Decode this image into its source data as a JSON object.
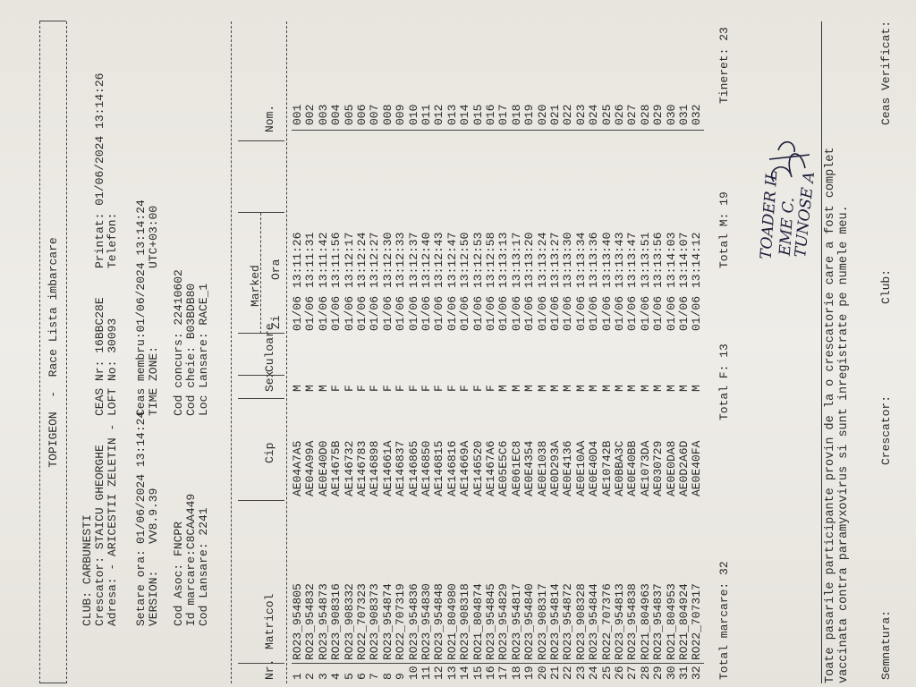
{
  "header": {
    "title": "TOPIGEON  -  Race Lista imbarcare",
    "club": "CLUB: CARBUNESTI",
    "crescator": "Crescator: STAICU GHEORGHE",
    "adresa": "Adresa: - ARICESTII ZELETIN -",
    "ceas_nr": "CEAS Nr: 16BBC28E",
    "loft_no": "LOFT No: 30093",
    "printat": "Printat: 01/06/2024 13:14:26",
    "telefon": "Telefon:",
    "setare_ora": {
      "label": "Setare ora:",
      "value": "01/06/2024 13:14:24"
    },
    "version": {
      "label": "VERSION:",
      "value": "VV8.9.39"
    },
    "ceas_membru": "Ceas membru:01/06/2024 13:14:24",
    "time_zone": {
      "label": "TIME ZONE:",
      "value": "UTC+03:00"
    },
    "cod_asoc": "Cod Asoc: FNCPR",
    "id_marcare": "Id marcare:C8CAA449",
    "cod_lansare": "Cod Lansare: 2241",
    "cod_concurs": "Cod concurs: 22410602",
    "cod_cheie": "Cod cheie: B03BDB80",
    "loc_lansare": "Loc Lansare: RACE_1"
  },
  "table": {
    "columns": [
      "Nr.",
      "Matricol",
      "Cip",
      "Sex",
      "Culoare",
      "Zi",
      "Ora",
      "Nom."
    ],
    "group": "Marked",
    "rows": [
      [
        1,
        "RO23_954805",
        "AE04A7A5",
        "M",
        "01/06",
        "13:11:26",
        "001"
      ],
      [
        2,
        "RO23_954832",
        "AE04A99A",
        "M",
        "01/06",
        "13:11:31",
        "002"
      ],
      [
        3,
        "RO23_954873",
        "AE0E40D0",
        "M",
        "01/06",
        "13:11:42",
        "003"
      ],
      [
        4,
        "RO23_908316",
        "AE14675B",
        "F",
        "01/06",
        "13:11:56",
        "004"
      ],
      [
        5,
        "RO23_908332",
        "AE146732",
        "F",
        "01/06",
        "13:12:17",
        "005"
      ],
      [
        6,
        "RO22_707323",
        "AE146783",
        "F",
        "01/06",
        "13:12:24",
        "006"
      ],
      [
        7,
        "RO23_908373",
        "AE146898",
        "F",
        "01/06",
        "13:12:27",
        "007"
      ],
      [
        8,
        "RO23_954874",
        "AE14661A",
        "F",
        "01/06",
        "13:12:30",
        "008"
      ],
      [
        9,
        "RO22_707319",
        "AE146837",
        "F",
        "01/06",
        "13:12:33",
        "009"
      ],
      [
        10,
        "RO23_954836",
        "AE146865",
        "F",
        "01/06",
        "13:12:37",
        "010"
      ],
      [
        11,
        "RO23_954830",
        "AE146850",
        "F",
        "01/06",
        "13:12:40",
        "011"
      ],
      [
        12,
        "RO23_954848",
        "AE146815",
        "F",
        "01/06",
        "13:12:43",
        "012"
      ],
      [
        13,
        "RO21_804980",
        "AE146816",
        "F",
        "01/06",
        "13:12:47",
        "013"
      ],
      [
        14,
        "RO23_908318",
        "AE14669A",
        "F",
        "01/06",
        "13:12:50",
        "014"
      ],
      [
        15,
        "RO21_804874",
        "AE146520",
        "F",
        "01/06",
        "13:12:53",
        "015"
      ],
      [
        16,
        "RO23_954845",
        "AE1467A6",
        "F",
        "01/06",
        "13:12:58",
        "016"
      ],
      [
        17,
        "RO23_954829",
        "AE05E5C6",
        "M",
        "01/06",
        "13:13:13",
        "017"
      ],
      [
        18,
        "RO23_954817",
        "AE061EC8",
        "M",
        "01/06",
        "13:13:17",
        "018"
      ],
      [
        19,
        "RO23_954840",
        "AE0E4354",
        "M",
        "01/06",
        "13:13:20",
        "019"
      ],
      [
        20,
        "RO23_908317",
        "AE0E1038",
        "M",
        "01/06",
        "13:13:24",
        "020"
      ],
      [
        21,
        "RO23_954814",
        "AE0D293A",
        "M",
        "01/06",
        "13:13:27",
        "021"
      ],
      [
        22,
        "RO23_954872",
        "AE0E4136",
        "M",
        "01/06",
        "13:13:30",
        "022"
      ],
      [
        23,
        "RO23_908328",
        "AE0E10AA",
        "M",
        "01/06",
        "13:13:34",
        "023"
      ],
      [
        24,
        "RO23_954844",
        "AE0E40D4",
        "M",
        "01/06",
        "13:13:36",
        "024"
      ],
      [
        25,
        "RO22_707376",
        "AE10742B",
        "M",
        "01/06",
        "13:13:40",
        "025"
      ],
      [
        26,
        "RO23_954813",
        "AE0BBA3C",
        "M",
        "01/06",
        "13:13:43",
        "026"
      ],
      [
        27,
        "RO23_954838",
        "AE0E40BB",
        "M",
        "01/06",
        "13:13:47",
        "027"
      ],
      [
        28,
        "RO21_804963",
        "AE1073DA",
        "M",
        "01/06",
        "13:13:51",
        "028"
      ],
      [
        29,
        "RO23_954837",
        "AE030729",
        "M",
        "01/06",
        "13:13:56",
        "029"
      ],
      [
        30,
        "RO21_804953",
        "AE0E0DA8",
        "M",
        "01/06",
        "13:14:03",
        "030"
      ],
      [
        31,
        "RO21_804924",
        "AE0D2A6D",
        "M",
        "01/06",
        "13:14:07",
        "031"
      ],
      [
        32,
        "RO22_707317",
        "AE0E40FA",
        "M",
        "01/06",
        "13:14:12",
        "032"
      ]
    ]
  },
  "totals": {
    "total_marcare": "Total marcare: 32",
    "total_f": "Total F: 13",
    "total_m": "Total M: 19",
    "tineret": "Tineret: 23"
  },
  "handwritten": [
    "TOADER IL",
    "EME C.",
    "TUNOSE A"
  ],
  "declaration": [
    "Toate pasarile participante provin de la o crescatorie care a fost complet",
    "vaccinata contra paramyxovirus si sunt inregistrate pe numele meu."
  ],
  "signatures": {
    "semnatura": "Semnatura:",
    "crescator": "Crescator:",
    "club": "Club:",
    "ceas_verificat": "Ceas Verificat:"
  }
}
